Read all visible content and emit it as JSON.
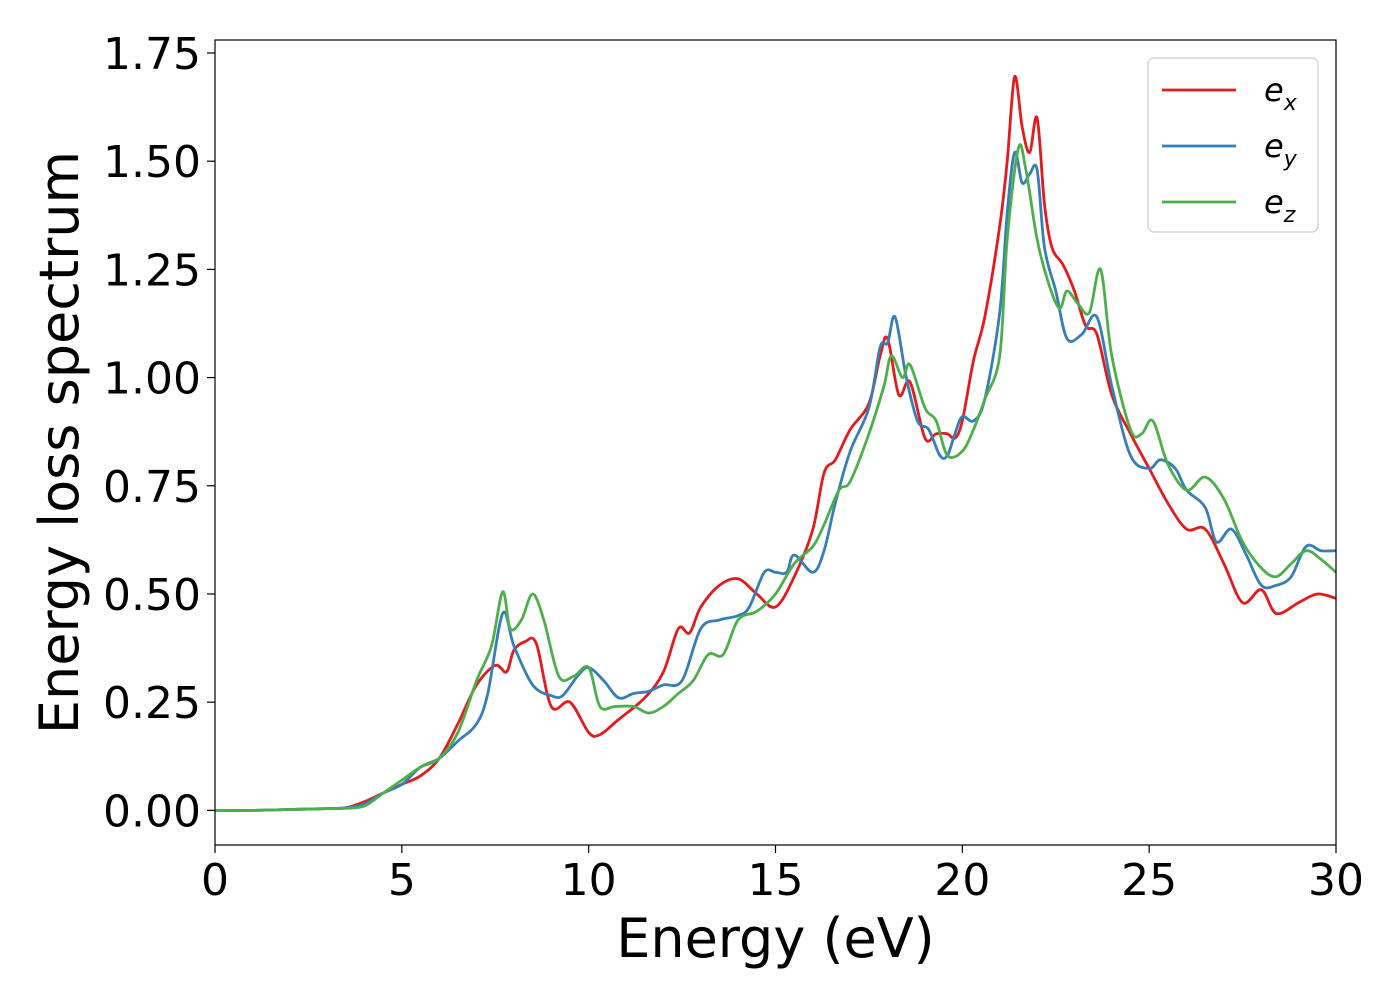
{
  "chart_data": {
    "type": "line",
    "xlabel": "Energy (eV)",
    "ylabel": "Energy loss spectrum",
    "xlim": [
      0,
      30
    ],
    "ylim": [
      -0.08,
      1.78
    ],
    "xticks": [
      0,
      5,
      10,
      15,
      20,
      25,
      30
    ],
    "xtick_labels": [
      "0",
      "5",
      "10",
      "15",
      "20",
      "25",
      "30"
    ],
    "yticks": [
      0,
      0.25,
      0.5,
      0.75,
      1.0,
      1.25,
      1.5,
      1.75
    ],
    "ytick_labels": [
      "0.00",
      "0.25",
      "0.50",
      "0.75",
      "1.00",
      "1.25",
      "1.50",
      "1.75"
    ],
    "grid": false,
    "legend_position": "top-right",
    "series": [
      {
        "name": "e_x",
        "label_base": "e",
        "label_sub": "x",
        "color": "#e41a1c",
        "points": [
          [
            0,
            0.0
          ],
          [
            1,
            0.0
          ],
          [
            2,
            0.002
          ],
          [
            3,
            0.004
          ],
          [
            3.5,
            0.006
          ],
          [
            4,
            0.02
          ],
          [
            4.5,
            0.04
          ],
          [
            5,
            0.06
          ],
          [
            5.5,
            0.08
          ],
          [
            6,
            0.12
          ],
          [
            6.5,
            0.2
          ],
          [
            7,
            0.29
          ],
          [
            7.5,
            0.335
          ],
          [
            7.8,
            0.32
          ],
          [
            8,
            0.37
          ],
          [
            8.3,
            0.39
          ],
          [
            8.6,
            0.385
          ],
          [
            9,
            0.24
          ],
          [
            9.5,
            0.25
          ],
          [
            10,
            0.18
          ],
          [
            10.3,
            0.175
          ],
          [
            10.8,
            0.21
          ],
          [
            11.5,
            0.26
          ],
          [
            12,
            0.32
          ],
          [
            12.4,
            0.42
          ],
          [
            12.7,
            0.41
          ],
          [
            13,
            0.47
          ],
          [
            13.5,
            0.52
          ],
          [
            14,
            0.535
          ],
          [
            14.5,
            0.5
          ],
          [
            15,
            0.47
          ],
          [
            15.5,
            0.54
          ],
          [
            16,
            0.65
          ],
          [
            16.3,
            0.78
          ],
          [
            16.6,
            0.81
          ],
          [
            17,
            0.88
          ],
          [
            17.5,
            0.94
          ],
          [
            17.8,
            1.05
          ],
          [
            18,
            1.09
          ],
          [
            18.3,
            0.96
          ],
          [
            18.6,
            0.99
          ],
          [
            19,
            0.86
          ],
          [
            19.3,
            0.87
          ],
          [
            19.6,
            0.87
          ],
          [
            19.8,
            0.86
          ],
          [
            20,
            0.9
          ],
          [
            20.3,
            1.04
          ],
          [
            20.6,
            1.14
          ],
          [
            21,
            1.35
          ],
          [
            21.2,
            1.5
          ],
          [
            21.4,
            1.695
          ],
          [
            21.6,
            1.58
          ],
          [
            21.8,
            1.52
          ],
          [
            22,
            1.6
          ],
          [
            22.2,
            1.4
          ],
          [
            22.4,
            1.3
          ],
          [
            22.7,
            1.26
          ],
          [
            23,
            1.2
          ],
          [
            23.3,
            1.12
          ],
          [
            23.6,
            1.1
          ],
          [
            24,
            0.96
          ],
          [
            24.5,
            0.87
          ],
          [
            25,
            0.79
          ],
          [
            25.5,
            0.71
          ],
          [
            26,
            0.65
          ],
          [
            26.5,
            0.65
          ],
          [
            27,
            0.57
          ],
          [
            27.5,
            0.48
          ],
          [
            28,
            0.51
          ],
          [
            28.4,
            0.455
          ],
          [
            29,
            0.48
          ],
          [
            29.5,
            0.5
          ],
          [
            30,
            0.49
          ]
        ]
      },
      {
        "name": "e_y",
        "label_base": "e",
        "label_sub": "y",
        "color": "#377eb8",
        "points": [
          [
            0,
            0.0
          ],
          [
            1,
            0.0
          ],
          [
            2,
            0.002
          ],
          [
            3,
            0.004
          ],
          [
            3.5,
            0.006
          ],
          [
            4,
            0.015
          ],
          [
            4.5,
            0.04
          ],
          [
            5,
            0.06
          ],
          [
            5.5,
            0.1
          ],
          [
            6,
            0.12
          ],
          [
            6.5,
            0.16
          ],
          [
            7,
            0.2
          ],
          [
            7.3,
            0.27
          ],
          [
            7.7,
            0.455
          ],
          [
            8,
            0.38
          ],
          [
            8.5,
            0.29
          ],
          [
            9,
            0.265
          ],
          [
            9.3,
            0.265
          ],
          [
            9.7,
            0.31
          ],
          [
            10,
            0.33
          ],
          [
            10.4,
            0.3
          ],
          [
            10.8,
            0.26
          ],
          [
            11.2,
            0.27
          ],
          [
            11.6,
            0.275
          ],
          [
            12,
            0.29
          ],
          [
            12.5,
            0.3
          ],
          [
            13,
            0.42
          ],
          [
            13.5,
            0.44
          ],
          [
            14,
            0.45
          ],
          [
            14.3,
            0.47
          ],
          [
            14.7,
            0.55
          ],
          [
            15,
            0.55
          ],
          [
            15.3,
            0.55
          ],
          [
            15.5,
            0.59
          ],
          [
            16,
            0.55
          ],
          [
            16.3,
            0.6
          ],
          [
            16.6,
            0.71
          ],
          [
            17,
            0.83
          ],
          [
            17.5,
            0.93
          ],
          [
            17.8,
            1.07
          ],
          [
            18,
            1.08
          ],
          [
            18.2,
            1.14
          ],
          [
            18.5,
            1.0
          ],
          [
            18.8,
            0.9
          ],
          [
            19.1,
            0.88
          ],
          [
            19.4,
            0.82
          ],
          [
            19.6,
            0.82
          ],
          [
            19.8,
            0.87
          ],
          [
            20,
            0.91
          ],
          [
            20.3,
            0.9
          ],
          [
            20.6,
            0.95
          ],
          [
            21,
            1.15
          ],
          [
            21.2,
            1.38
          ],
          [
            21.4,
            1.52
          ],
          [
            21.6,
            1.45
          ],
          [
            21.8,
            1.47
          ],
          [
            22,
            1.48
          ],
          [
            22.2,
            1.3
          ],
          [
            22.5,
            1.2
          ],
          [
            22.8,
            1.09
          ],
          [
            23.2,
            1.1
          ],
          [
            23.6,
            1.14
          ],
          [
            24,
            0.98
          ],
          [
            24.5,
            0.82
          ],
          [
            25,
            0.79
          ],
          [
            25.3,
            0.81
          ],
          [
            25.7,
            0.79
          ],
          [
            26,
            0.74
          ],
          [
            26.5,
            0.7
          ],
          [
            26.8,
            0.62
          ],
          [
            27.2,
            0.65
          ],
          [
            27.6,
            0.59
          ],
          [
            28,
            0.52
          ],
          [
            28.4,
            0.52
          ],
          [
            28.8,
            0.54
          ],
          [
            29.2,
            0.61
          ],
          [
            29.6,
            0.6
          ],
          [
            30,
            0.6
          ]
        ]
      },
      {
        "name": "e_z",
        "label_base": "e",
        "label_sub": "z",
        "color": "#4daf4a",
        "points": [
          [
            0,
            0.0
          ],
          [
            1,
            0.0
          ],
          [
            2,
            0.002
          ],
          [
            3,
            0.004
          ],
          [
            3.5,
            0.005
          ],
          [
            4,
            0.01
          ],
          [
            4.5,
            0.04
          ],
          [
            5,
            0.07
          ],
          [
            5.5,
            0.1
          ],
          [
            6,
            0.12
          ],
          [
            6.5,
            0.18
          ],
          [
            7,
            0.3
          ],
          [
            7.4,
            0.38
          ],
          [
            7.7,
            0.505
          ],
          [
            7.9,
            0.42
          ],
          [
            8.2,
            0.44
          ],
          [
            8.5,
            0.5
          ],
          [
            8.8,
            0.44
          ],
          [
            9.2,
            0.31
          ],
          [
            9.6,
            0.31
          ],
          [
            10,
            0.33
          ],
          [
            10.3,
            0.24
          ],
          [
            10.7,
            0.24
          ],
          [
            11.2,
            0.24
          ],
          [
            11.6,
            0.225
          ],
          [
            12,
            0.24
          ],
          [
            12.4,
            0.27
          ],
          [
            12.8,
            0.3
          ],
          [
            13.2,
            0.36
          ],
          [
            13.6,
            0.36
          ],
          [
            14,
            0.44
          ],
          [
            14.5,
            0.46
          ],
          [
            15,
            0.5
          ],
          [
            15.5,
            0.57
          ],
          [
            16,
            0.61
          ],
          [
            16.3,
            0.66
          ],
          [
            16.7,
            0.74
          ],
          [
            17,
            0.76
          ],
          [
            17.5,
            0.87
          ],
          [
            17.9,
            0.98
          ],
          [
            18.1,
            1.05
          ],
          [
            18.4,
            1.0
          ],
          [
            18.6,
            1.03
          ],
          [
            19,
            0.93
          ],
          [
            19.3,
            0.9
          ],
          [
            19.6,
            0.82
          ],
          [
            20,
            0.83
          ],
          [
            20.3,
            0.88
          ],
          [
            20.6,
            0.95
          ],
          [
            21,
            1.05
          ],
          [
            21.2,
            1.32
          ],
          [
            21.5,
            1.53
          ],
          [
            21.7,
            1.48
          ],
          [
            22,
            1.32
          ],
          [
            22.3,
            1.22
          ],
          [
            22.6,
            1.16
          ],
          [
            22.8,
            1.2
          ],
          [
            23.1,
            1.17
          ],
          [
            23.4,
            1.15
          ],
          [
            23.7,
            1.25
          ],
          [
            24,
            1.05
          ],
          [
            24.5,
            0.88
          ],
          [
            24.8,
            0.87
          ],
          [
            25.1,
            0.9
          ],
          [
            25.5,
            0.8
          ],
          [
            26,
            0.74
          ],
          [
            26.5,
            0.77
          ],
          [
            27,
            0.72
          ],
          [
            27.5,
            0.62
          ],
          [
            28,
            0.56
          ],
          [
            28.4,
            0.54
          ],
          [
            28.8,
            0.57
          ],
          [
            29.2,
            0.6
          ],
          [
            29.6,
            0.58
          ],
          [
            30,
            0.55
          ]
        ]
      }
    ]
  }
}
